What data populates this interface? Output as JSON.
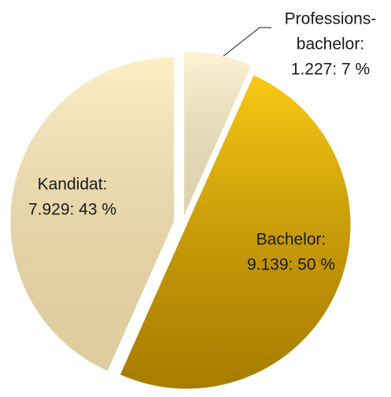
{
  "chart_data": {
    "type": "pie",
    "categories": [
      [
        "Professions-",
        "bachelor:"
      ],
      [
        "Bachelor:"
      ],
      [
        "Kandidat:"
      ]
    ],
    "values": [
      1227,
      9139,
      7929
    ],
    "value_labels": [
      "1.227: 7 %",
      "9.139: 50 %",
      "7.929: 43 %"
    ],
    "colors": [
      "#fdefc6",
      "#e0a800",
      "#fde9b4"
    ]
  }
}
